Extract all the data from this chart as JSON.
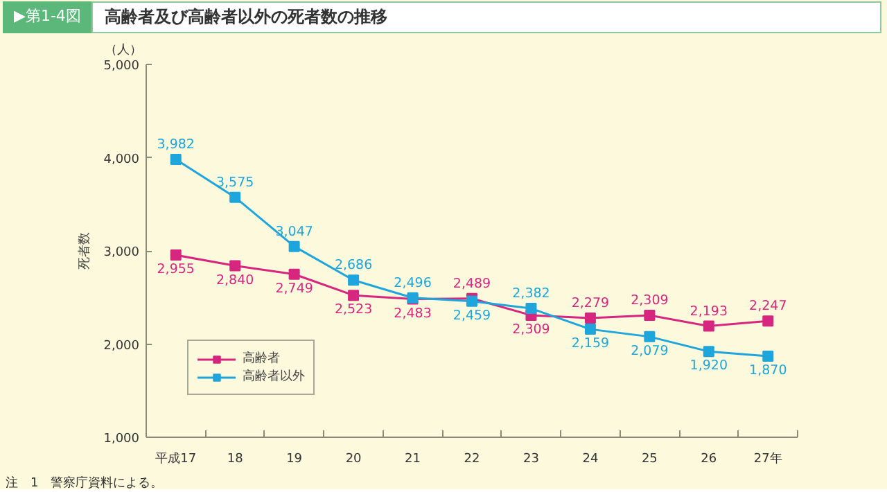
{
  "chart_data": {
    "type": "line",
    "title": "高齢者及び高齢者以外の死者数の推移",
    "subtitle": "▶第1-4図",
    "ylabel": "死者数",
    "annotations": [
      "（人）",
      "注　1　警察庁資料による。"
    ],
    "categories": [
      "平成17",
      "18",
      "19",
      "20",
      "21",
      "22",
      "23",
      "24",
      "25",
      "26",
      "27年"
    ],
    "series": [
      {
        "name": "高齢者",
        "color": "#d6267f",
        "values": [
          2955,
          2840,
          2749,
          2523,
          2483,
          2489,
          2309,
          2279,
          2309,
          2193,
          2247
        ],
        "value_labels": [
          "2,955",
          "2,840",
          "2,749",
          "2,523",
          "2,483",
          "2,489",
          "2,309",
          "2,279",
          "2,309",
          "2,193",
          "2,247"
        ]
      },
      {
        "name": "高齢者以外",
        "color": "#1ea5dc",
        "values": [
          3982,
          3575,
          3047,
          2686,
          2496,
          2459,
          2382,
          2159,
          2079,
          1920,
          1870
        ],
        "value_labels": [
          "3,982",
          "3,575",
          "3,047",
          "2,686",
          "2,496",
          "2,459",
          "2,382",
          "2,159",
          "2,079",
          "1,920",
          "1,870"
        ]
      }
    ],
    "ylim": [
      1000,
      5000
    ],
    "yticks": [
      {
        "value": 1000,
        "label": "1,000"
      },
      {
        "value": 2000,
        "label": "2,000"
      },
      {
        "value": 3000,
        "label": "3,000"
      },
      {
        "value": 4000,
        "label": "4,000"
      },
      {
        "value": 5000,
        "label": "5,000"
      }
    ],
    "grid": false,
    "legend": "bottom left",
    "marker": "square",
    "line_style": "solid"
  }
}
